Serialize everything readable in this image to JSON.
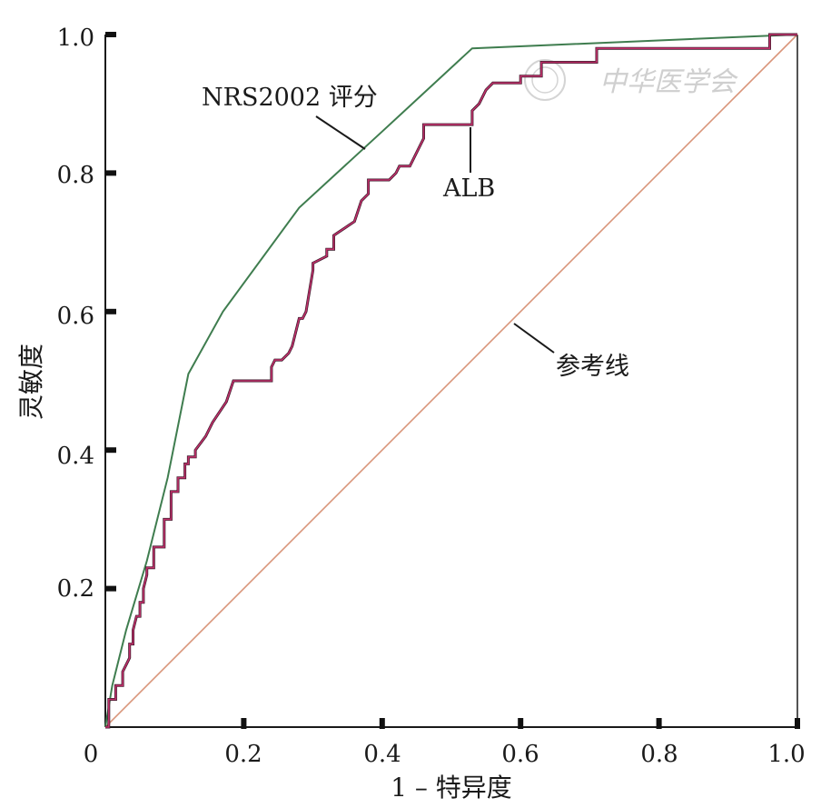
{
  "chart_data": {
    "type": "line",
    "title": "",
    "xlabel": "1 – 特异度",
    "ylabel": "灵敏度",
    "xlim": [
      0,
      1.0
    ],
    "ylim": [
      0,
      1.0
    ],
    "xticks": [
      "0",
      "0.2",
      "0.4",
      "0.6",
      "0.8",
      "1.0"
    ],
    "yticks": [
      "0.2",
      "0.4",
      "0.6",
      "0.8",
      "1.0"
    ],
    "grid": false,
    "series": [
      {
        "name": "NRS2002 评分",
        "color": "#3f7d4f",
        "x": [
          0,
          0.01,
          0.03,
          0.06,
          0.09,
          0.12,
          0.17,
          0.28,
          0.4,
          0.53,
          1.0
        ],
        "y": [
          0,
          0.06,
          0.14,
          0.24,
          0.36,
          0.51,
          0.6,
          0.75,
          0.86,
          0.98,
          1.0
        ]
      },
      {
        "name": "ALB",
        "color": "#c0306a",
        "x": [
          0,
          0.005,
          0.005,
          0.015,
          0.015,
          0.025,
          0.025,
          0.03,
          0.035,
          0.035,
          0.04,
          0.04,
          0.045,
          0.05,
          0.05,
          0.055,
          0.055,
          0.06,
          0.06,
          0.07,
          0.07,
          0.07,
          0.07,
          0.085,
          0.085,
          0.095,
          0.095,
          0.105,
          0.105,
          0.115,
          0.115,
          0.12,
          0.12,
          0.13,
          0.13,
          0.145,
          0.155,
          0.155,
          0.175,
          0.175,
          0.185,
          0.185,
          0.24,
          0.24,
          0.245,
          0.255,
          0.265,
          0.27,
          0.28,
          0.285,
          0.29,
          0.29,
          0.3,
          0.3,
          0.32,
          0.32,
          0.33,
          0.33,
          0.36,
          0.37,
          0.38,
          0.38,
          0.41,
          0.42,
          0.425,
          0.43,
          0.44,
          0.44,
          0.45,
          0.46,
          0.46,
          0.49,
          0.51,
          0.53,
          0.53,
          0.54,
          0.55,
          0.56,
          0.56,
          0.6,
          0.6,
          0.63,
          0.63,
          0.71,
          0.71,
          0.96,
          0.96,
          1.0
        ],
        "y": [
          0,
          0,
          0.04,
          0.04,
          0.06,
          0.06,
          0.08,
          0.09,
          0.1,
          0.12,
          0.12,
          0.14,
          0.16,
          0.16,
          0.18,
          0.18,
          0.2,
          0.22,
          0.23,
          0.23,
          0.24,
          0.24,
          0.26,
          0.26,
          0.3,
          0.3,
          0.34,
          0.34,
          0.36,
          0.36,
          0.38,
          0.38,
          0.39,
          0.39,
          0.4,
          0.42,
          0.44,
          0.44,
          0.47,
          0.47,
          0.5,
          0.5,
          0.5,
          0.52,
          0.53,
          0.53,
          0.54,
          0.55,
          0.59,
          0.59,
          0.6,
          0.6,
          0.66,
          0.67,
          0.68,
          0.69,
          0.69,
          0.71,
          0.73,
          0.76,
          0.77,
          0.79,
          0.79,
          0.8,
          0.81,
          0.81,
          0.81,
          0.81,
          0.83,
          0.85,
          0.87,
          0.87,
          0.87,
          0.87,
          0.89,
          0.9,
          0.92,
          0.93,
          0.93,
          0.93,
          0.94,
          0.94,
          0.96,
          0.96,
          0.98,
          0.98,
          1.0,
          1.0
        ]
      },
      {
        "name": "参考线",
        "color": "#d9957a",
        "x": [
          0,
          1.0
        ],
        "y": [
          0,
          1.0
        ]
      }
    ],
    "annotations": [
      {
        "text": "NRS2002 评分",
        "series": 0
      },
      {
        "text": "ALB",
        "series": 1
      },
      {
        "text": "参考线",
        "series": 2
      }
    ],
    "legend": "none"
  },
  "watermark": {
    "text": "中华医学会"
  }
}
